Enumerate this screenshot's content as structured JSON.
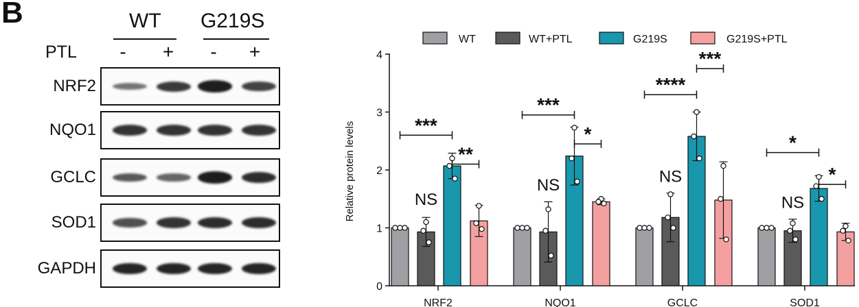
{
  "panel_letter": "B",
  "blot": {
    "groups": [
      {
        "label": "WT"
      },
      {
        "label": "G219S"
      }
    ],
    "ptl_label": "PTL",
    "ptl_signs": [
      "-",
      "+",
      "-",
      "+"
    ],
    "rows": [
      {
        "label": "NRF2",
        "bands": [
          0.35,
          0.75,
          0.95,
          0.7
        ]
      },
      {
        "label": "NQO1",
        "bands": [
          0.8,
          0.8,
          0.8,
          0.8
        ]
      },
      {
        "label": "GCLC",
        "bands": [
          0.55,
          0.45,
          0.95,
          0.85
        ]
      },
      {
        "label": "SOD1",
        "bands": [
          0.6,
          0.8,
          0.85,
          0.85
        ]
      },
      {
        "label": "GAPDH",
        "bands": [
          0.9,
          0.9,
          0.9,
          0.9
        ]
      }
    ]
  },
  "chart_data": {
    "type": "bar",
    "title": "",
    "xlabel": "",
    "ylabel": "Relative protein levels",
    "ylim": [
      0,
      4
    ],
    "yticks": [
      0,
      1,
      2,
      3,
      4
    ],
    "categories": [
      "NRF2",
      "NQO1",
      "GCLC",
      "SOD1"
    ],
    "legend_position": "top",
    "series": [
      {
        "name": "WT",
        "color": "#a0a0a4",
        "values": [
          1.0,
          1.0,
          1.0,
          1.0
        ],
        "errors": [
          0,
          0,
          0,
          0
        ],
        "points": [
          [
            1.0,
            1.0,
            1.0
          ],
          [
            1.0,
            1.0,
            1.0
          ],
          [
            1.0,
            1.0,
            1.0
          ],
          [
            1.0,
            1.0,
            1.0
          ]
        ]
      },
      {
        "name": "WT+PTL",
        "color": "#5a5a5a",
        "values": [
          0.93,
          0.93,
          1.18,
          0.95
        ],
        "errors": [
          0.25,
          0.52,
          0.42,
          0.2
        ],
        "points": [
          [
            1.1,
            0.95,
            0.75
          ],
          [
            1.32,
            0.95,
            0.52
          ],
          [
            1.58,
            1.18,
            1.0
          ],
          [
            1.08,
            0.95,
            0.8
          ]
        ]
      },
      {
        "name": "G219S",
        "color": "#1897ad",
        "values": [
          2.07,
          2.24,
          2.58,
          1.68
        ],
        "errors": [
          0.22,
          0.5,
          0.42,
          0.22
        ],
        "points": [
          [
            2.2,
            2.07,
            1.85
          ],
          [
            2.73,
            2.2,
            1.8
          ],
          [
            3.0,
            2.58,
            2.2
          ],
          [
            1.88,
            1.72,
            1.5
          ]
        ]
      },
      {
        "name": "G219S+PTL",
        "color": "#f5a0a0",
        "values": [
          1.12,
          1.45,
          1.48,
          0.93
        ],
        "errors": [
          0.27,
          0.05,
          0.66,
          0.15
        ],
        "points": [
          [
            1.38,
            1.08,
            0.98
          ],
          [
            1.5,
            1.45,
            1.42
          ],
          [
            2.07,
            1.5,
            0.8
          ],
          [
            1.03,
            0.95,
            0.78
          ]
        ]
      }
    ],
    "significance": [
      {
        "category": 0,
        "from": 0,
        "to": 2,
        "y": 2.6,
        "label": "***"
      },
      {
        "category": 0,
        "from": 2,
        "to": 3,
        "y": 2.1,
        "label": "**"
      },
      {
        "category": 0,
        "label": "NS",
        "over": 1,
        "y": 1.3
      },
      {
        "category": 1,
        "from": 0,
        "to": 2,
        "y": 2.95,
        "label": "***"
      },
      {
        "category": 1,
        "from": 2,
        "to": 3,
        "y": 2.45,
        "label": "*"
      },
      {
        "category": 1,
        "label": "NS",
        "over": 1,
        "y": 1.55
      },
      {
        "category": 2,
        "from": 0,
        "to": 2,
        "y": 3.3,
        "label": "****"
      },
      {
        "category": 2,
        "from": 2,
        "to": 3,
        "y": 3.75,
        "label": "***"
      },
      {
        "category": 2,
        "label": "NS",
        "over": 1,
        "y": 1.7
      },
      {
        "category": 3,
        "from": 0,
        "to": 2,
        "y": 2.3,
        "label": "*"
      },
      {
        "category": 3,
        "from": 2,
        "to": 3,
        "y": 1.75,
        "label": "*"
      },
      {
        "category": 3,
        "label": "NS",
        "over": 1,
        "y": 1.25
      }
    ]
  }
}
